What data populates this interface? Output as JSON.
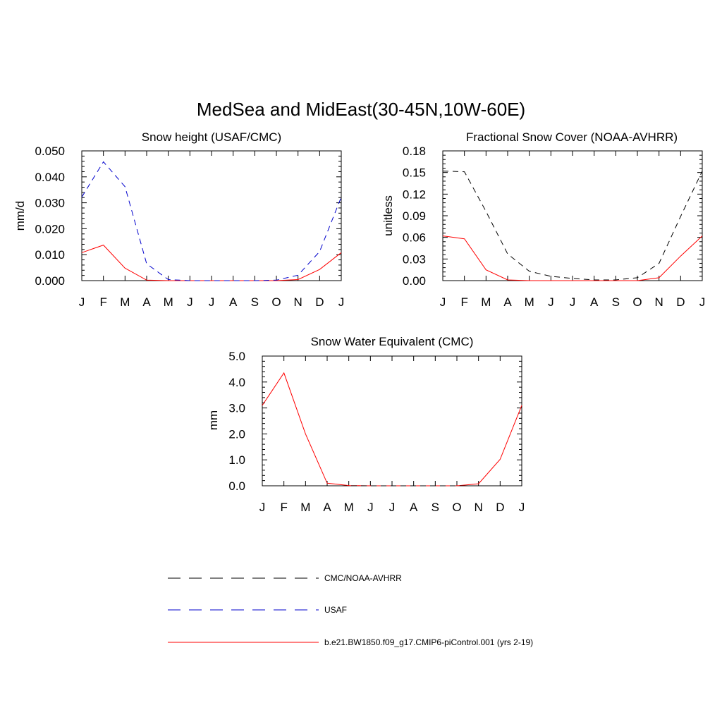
{
  "page": {
    "title": "MedSea and MidEast(30-45N,10W-60E)"
  },
  "colors": {
    "model": "#ff0000",
    "obs_black": "#000000",
    "obs_blue": "#0000cc"
  },
  "legend": {
    "items": [
      {
        "label": "CMC/NOAA-AVHRR",
        "color": "#000000",
        "dash": "dashed"
      },
      {
        "label": "USAF",
        "color": "#0000cc",
        "dash": "dashed"
      },
      {
        "label": "b.e21.BW1850.f09_g17.CMIP6-piControl.001 (yrs 2-19)",
        "color": "#ff0000",
        "dash": "solid"
      }
    ]
  },
  "chart_data": [
    {
      "id": "snowheight",
      "type": "line",
      "title": "Snow height (USAF/CMC)",
      "ylabel": "mm/d",
      "xlabel": "",
      "x": [
        "J",
        "F",
        "M",
        "A",
        "M",
        "J",
        "J",
        "A",
        "S",
        "O",
        "N",
        "D",
        "J"
      ],
      "ylim": [
        0,
        0.05
      ],
      "yticks": [
        0.0,
        0.01,
        0.02,
        0.03,
        0.04,
        0.05
      ],
      "ytick_labels": [
        "0.000",
        "0.010",
        "0.020",
        "0.030",
        "0.040",
        "0.050"
      ],
      "grid": false,
      "series": [
        {
          "name": "b.e21.BW1850.f09_g17.CMIP6-piControl.001 (yrs 2-19)",
          "color": "#ff0000",
          "dash": "solid",
          "values": [
            0.0108,
            0.0137,
            0.0048,
            0.0002,
            0.0,
            0.0,
            0.0,
            0.0,
            0.0,
            0.0,
            0.0004,
            0.0043,
            0.0108
          ]
        },
        {
          "name": "USAF",
          "color": "#0000cc",
          "dash": "dashed",
          "values": [
            0.0322,
            0.0458,
            0.0362,
            0.0065,
            0.0004,
            0.0,
            0.0,
            0.0,
            0.0,
            0.0002,
            0.0021,
            0.0112,
            0.0322
          ]
        }
      ]
    },
    {
      "id": "snowcover",
      "type": "line",
      "title": "Fractional Snow Cover (NOAA-AVHRR)",
      "ylabel": "unitless",
      "xlabel": "",
      "x": [
        "J",
        "F",
        "M",
        "A",
        "M",
        "J",
        "J",
        "A",
        "S",
        "O",
        "N",
        "D",
        "J"
      ],
      "ylim": [
        0,
        0.18
      ],
      "yticks": [
        0.0,
        0.03,
        0.06,
        0.09,
        0.12,
        0.15,
        0.18
      ],
      "ytick_labels": [
        "0.00",
        "0.03",
        "0.06",
        "0.09",
        "0.12",
        "0.15",
        "0.18"
      ],
      "grid": false,
      "series": [
        {
          "name": "b.e21.BW1850.f09_g17.CMIP6-piControl.001 (yrs 2-19)",
          "color": "#ff0000",
          "dash": "solid",
          "values": [
            0.062,
            0.058,
            0.015,
            0.001,
            0.0,
            0.0,
            0.0,
            0.0,
            0.0,
            0.0,
            0.004,
            0.034,
            0.062
          ]
        },
        {
          "name": "CMC/NOAA-AVHRR",
          "color": "#000000",
          "dash": "dashed",
          "values": [
            0.152,
            0.151,
            0.096,
            0.037,
            0.013,
            0.006,
            0.003,
            0.001,
            0.001,
            0.004,
            0.024,
            0.089,
            0.152
          ]
        }
      ]
    },
    {
      "id": "swe",
      "type": "line",
      "title": "Snow Water Equivalent (CMC)",
      "ylabel": "mm",
      "xlabel": "",
      "x": [
        "J",
        "F",
        "M",
        "A",
        "M",
        "J",
        "J",
        "A",
        "S",
        "O",
        "N",
        "D",
        "J"
      ],
      "ylim": [
        0,
        5.0
      ],
      "yticks": [
        0.0,
        1.0,
        2.0,
        3.0,
        4.0,
        5.0
      ],
      "ytick_labels": [
        "0.0",
        "1.0",
        "2.0",
        "3.0",
        "4.0",
        "5.0"
      ],
      "grid": false,
      "series": [
        {
          "name": "b.e21.BW1850.f09_g17.CMIP6-piControl.001 (yrs 2-19)",
          "color": "#ff0000",
          "dash": "solid",
          "values": [
            3.1,
            4.35,
            2.0,
            0.1,
            0.01,
            0.0,
            0.0,
            0.0,
            0.0,
            0.0,
            0.08,
            1.02,
            3.1
          ]
        },
        {
          "name": "CMC/NOAA-AVHRR",
          "color": "#000000",
          "dash": "dashed",
          "values": [
            0.0,
            0.0,
            0.0,
            0.0,
            0.0,
            0.0,
            0.0,
            0.0,
            0.0,
            0.0,
            0.0,
            0.0,
            0.0
          ]
        }
      ]
    }
  ]
}
